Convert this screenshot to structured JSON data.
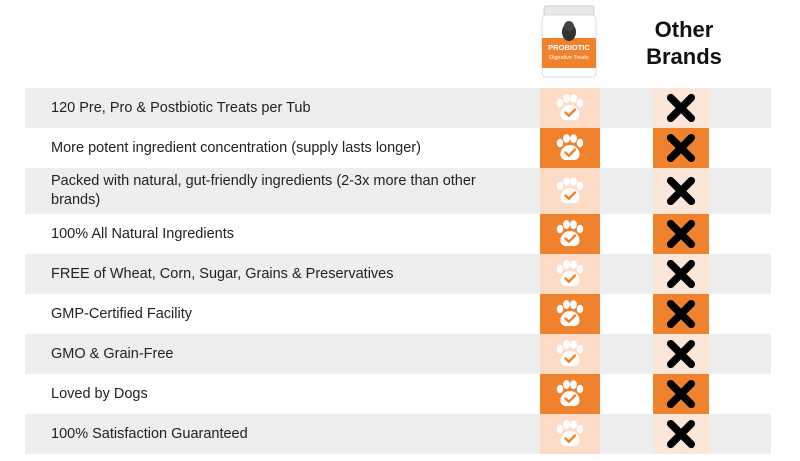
{
  "header": {
    "product_label_1": "PROBIOTIC",
    "product_label_2": "Digestive Treats",
    "other_brands_line1": "Other",
    "other_brands_line2": "Brands"
  },
  "icons": {
    "ours": "paw-check-icon",
    "theirs": "x-mark-icon"
  },
  "colors": {
    "accent": "#f0822e",
    "light_accent": "#fcdcc6",
    "row_shade": "#eeeeee"
  },
  "rows": [
    {
      "label": "120 Pre, Pro & Postbiotic Treats per Tub"
    },
    {
      "label": "More potent ingredient concentration (supply lasts longer)"
    },
    {
      "label": "Packed with natural, gut-friendly ingredients (2-3x more than other brands)"
    },
    {
      "label": "100% All Natural Ingredients"
    },
    {
      "label": "FREE of Wheat, Corn, Sugar, Grains & Preservatives"
    },
    {
      "label": "GMP-Certified Facility"
    },
    {
      "label": "GMO & Grain-Free"
    },
    {
      "label": "Loved by Dogs"
    },
    {
      "label": "100% Satisfaction Guaranteed"
    }
  ]
}
